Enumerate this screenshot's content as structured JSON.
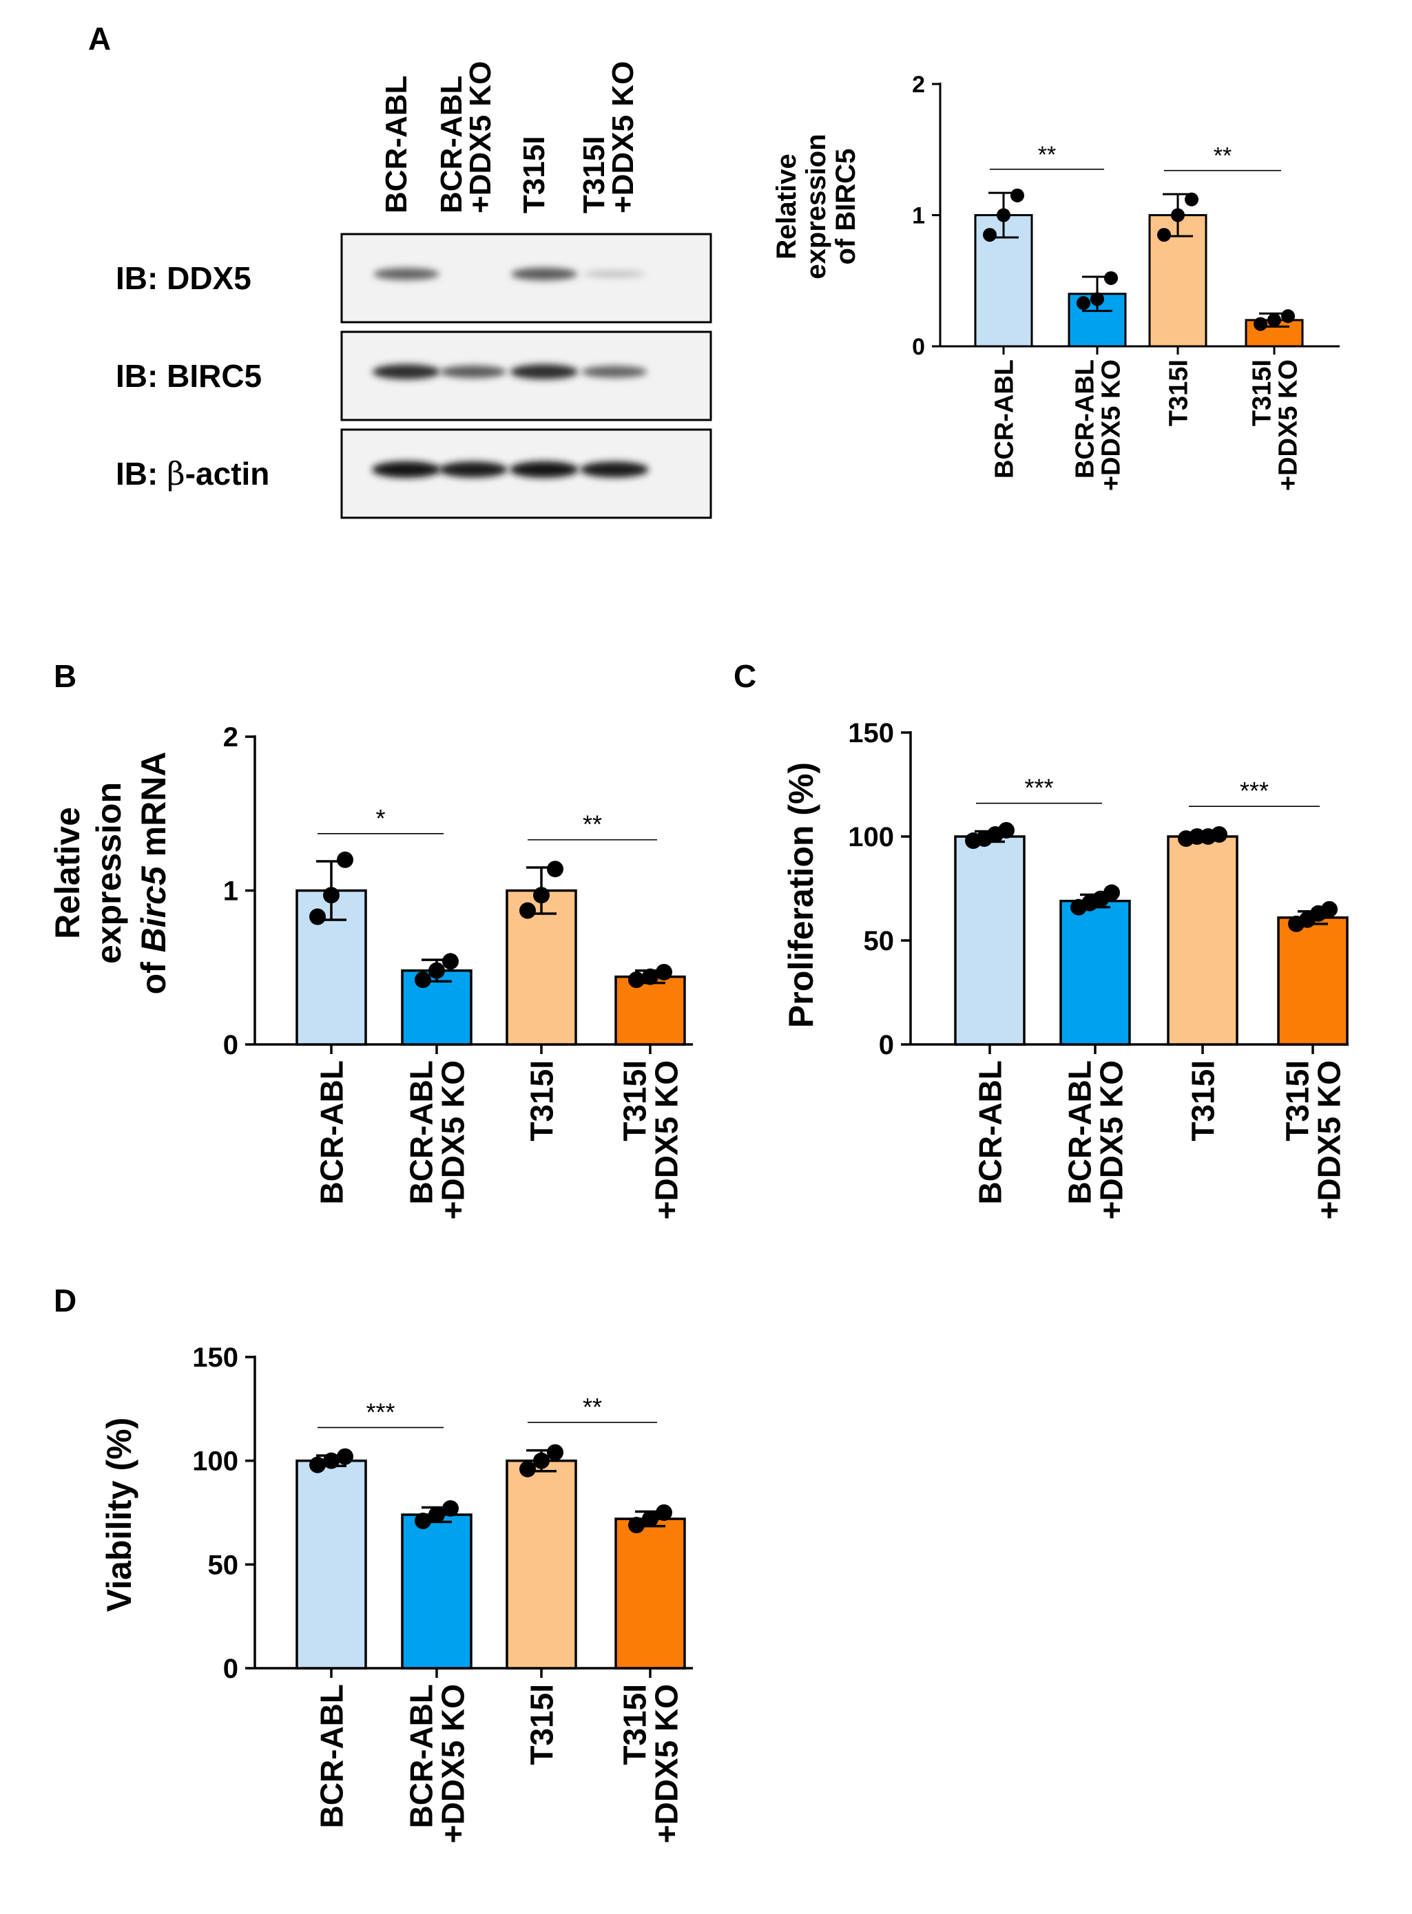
{
  "panels": {
    "A": "A",
    "B": "B",
    "C": "C",
    "D": "D"
  },
  "colors": {
    "bcr_abl": "#c5e0f5",
    "bcr_abl_ko": "#00a2f0",
    "t315i": "#fcc488",
    "t315i_ko": "#fb7d06"
  },
  "western_blot": {
    "lanes": [
      {
        "line1": "BCR-ABL",
        "line2": ""
      },
      {
        "line1": "BCR-ABL",
        "line2": "+DDX5 KO"
      },
      {
        "line1": "T315I",
        "line2": ""
      },
      {
        "line1": "T315I",
        "line2": "+DDX5 KO"
      }
    ],
    "rows": [
      {
        "label": "IB: DDX5",
        "intensities": [
          0.55,
          0.0,
          0.6,
          0.03
        ]
      },
      {
        "label": "IB: BIRC5",
        "intensities": [
          0.85,
          0.6,
          0.85,
          0.55
        ]
      },
      {
        "label_prefix": "IB: ",
        "label_greek": "β",
        "label_suffix": "-actin",
        "intensities": [
          1.0,
          0.95,
          1.0,
          0.95
        ]
      }
    ]
  },
  "chart_data": [
    {
      "panel": "A",
      "type": "bar",
      "categories": [
        {
          "line1": "BCR-ABL",
          "line2": ""
        },
        {
          "line1": "BCR-ABL",
          "line2": "+DDX5 KO"
        },
        {
          "line1": "T315I",
          "line2": ""
        },
        {
          "line1": "T315I",
          "line2": "+DDX5 KO"
        }
      ],
      "values": [
        1.0,
        0.4,
        1.0,
        0.2
      ],
      "errors": [
        0.17,
        0.13,
        0.16,
        0.05
      ],
      "points": [
        [
          0.85,
          1.0,
          1.15
        ],
        [
          0.33,
          0.36,
          0.52
        ],
        [
          0.85,
          1.0,
          1.12
        ],
        [
          0.17,
          0.2,
          0.23
        ]
      ],
      "ylabel_lines": [
        "Relative",
        "expression",
        "of BIRC5"
      ],
      "ylim": [
        0,
        2
      ],
      "yticks": [
        "0",
        "1",
        "2"
      ],
      "significance": [
        {
          "pair": [
            0,
            1
          ],
          "label": "**"
        },
        {
          "pair": [
            2,
            3
          ],
          "label": "**"
        }
      ]
    },
    {
      "panel": "B",
      "type": "bar",
      "categories": [
        {
          "line1": "BCR-ABL",
          "line2": ""
        },
        {
          "line1": "BCR-ABL",
          "line2": "+DDX5 KO"
        },
        {
          "line1": "T315I",
          "line2": ""
        },
        {
          "line1": "T315I",
          "line2": "+DDX5 KO"
        }
      ],
      "values": [
        1.0,
        0.48,
        1.0,
        0.44
      ],
      "errors": [
        0.19,
        0.07,
        0.15,
        0.04
      ],
      "points": [
        [
          0.83,
          0.97,
          1.2
        ],
        [
          0.42,
          0.48,
          0.54
        ],
        [
          0.87,
          0.97,
          1.14
        ],
        [
          0.42,
          0.44,
          0.47
        ]
      ],
      "ylabel_lines": [
        "Relative",
        "expression"
      ],
      "ylabel_last": {
        "prefix": "of ",
        "italic": "Birc5",
        "suffix": " mRNA"
      },
      "ylim": [
        0,
        2
      ],
      "yticks": [
        "0",
        "1",
        "2"
      ],
      "significance": [
        {
          "pair": [
            0,
            1
          ],
          "label": "*"
        },
        {
          "pair": [
            2,
            3
          ],
          "label": "**"
        }
      ]
    },
    {
      "panel": "C",
      "type": "bar",
      "categories": [
        {
          "line1": "BCR-ABL",
          "line2": ""
        },
        {
          "line1": "BCR-ABL",
          "line2": "+DDX5 KO"
        },
        {
          "line1": "T315I",
          "line2": ""
        },
        {
          "line1": "T315I",
          "line2": "+DDX5 KO"
        }
      ],
      "values": [
        100,
        69,
        100,
        61
      ],
      "errors": [
        2.5,
        3,
        1,
        3
      ],
      "points": [
        [
          98,
          99,
          101,
          103
        ],
        [
          66,
          68,
          70,
          73
        ],
        [
          99,
          100,
          100,
          101
        ],
        [
          58,
          60,
          63,
          65
        ]
      ],
      "ylabel_lines": [
        "Proliferation (%)"
      ],
      "ylim": [
        0,
        150
      ],
      "yticks": [
        "0",
        "50",
        "100",
        "150"
      ],
      "significance": [
        {
          "pair": [
            0,
            1
          ],
          "label": "***"
        },
        {
          "pair": [
            2,
            3
          ],
          "label": "***"
        }
      ]
    },
    {
      "panel": "D",
      "type": "bar",
      "categories": [
        {
          "line1": "BCR-ABL",
          "line2": ""
        },
        {
          "line1": "BCR-ABL",
          "line2": "+DDX5 KO"
        },
        {
          "line1": "T315I",
          "line2": ""
        },
        {
          "line1": "T315I",
          "line2": "+DDX5 KO"
        }
      ],
      "values": [
        100,
        74,
        100,
        72
      ],
      "errors": [
        2.5,
        3.5,
        5,
        3.5
      ],
      "points": [
        [
          98,
          100,
          102
        ],
        [
          71,
          74,
          77
        ],
        [
          96,
          100,
          104
        ],
        [
          69,
          72,
          75
        ]
      ],
      "ylabel_lines": [
        "Viability (%)"
      ],
      "ylim": [
        0,
        150
      ],
      "yticks": [
        "0",
        "50",
        "100",
        "150"
      ],
      "significance": [
        {
          "pair": [
            0,
            1
          ],
          "label": "***"
        },
        {
          "pair": [
            2,
            3
          ],
          "label": "**"
        }
      ]
    }
  ]
}
